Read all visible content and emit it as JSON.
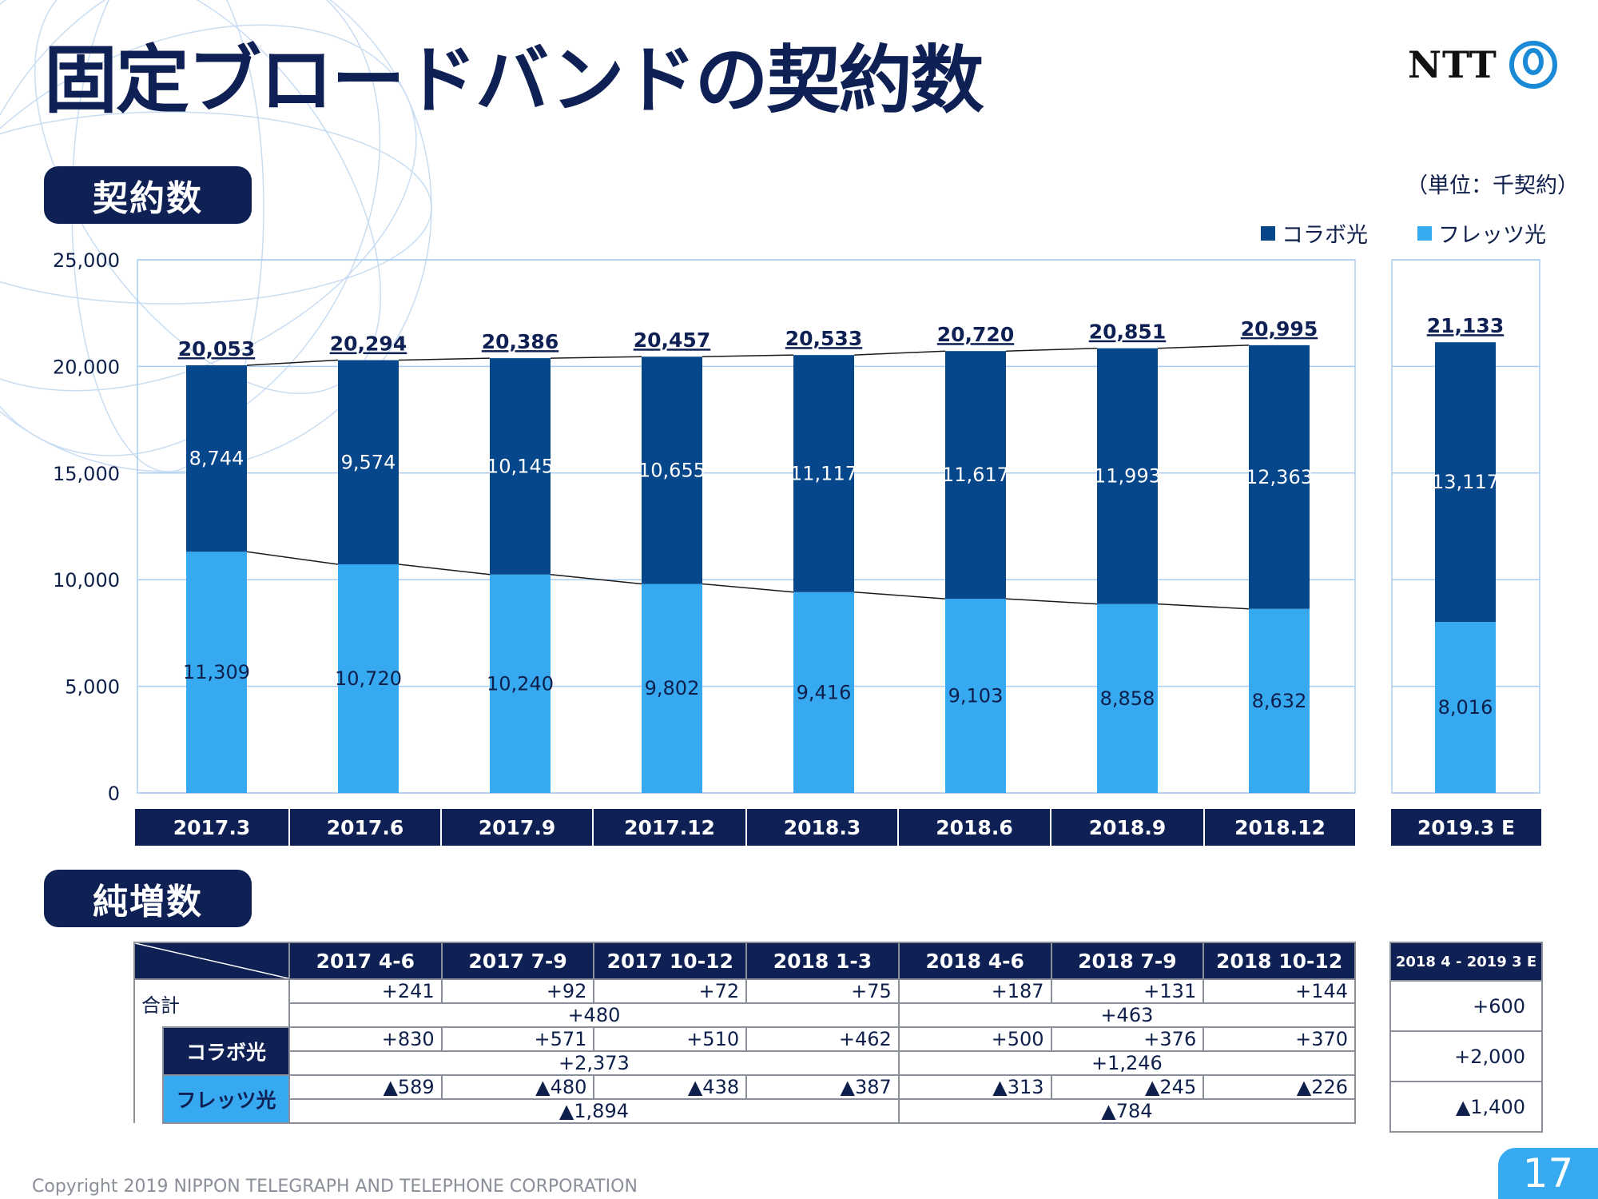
{
  "header": {
    "title": "固定ブロードバンドの契約数",
    "logo_text": "NTT"
  },
  "sections": {
    "contracts": "契約数",
    "net_adds": "純増数"
  },
  "unit_label": "（単位：千契約）",
  "legend": [
    {
      "label": "コラボ光",
      "color": "#06468a"
    },
    {
      "label": "フレッツ光",
      "color": "#37a9f0"
    }
  ],
  "chart_data": {
    "type": "bar",
    "stacked": true,
    "categories": [
      "2017.3",
      "2017.6",
      "2017.9",
      "2017.12",
      "2018.3",
      "2018.6",
      "2018.9",
      "2018.12",
      "2019.3 E"
    ],
    "series": [
      {
        "name": "フレッツ光",
        "values": [
          11309,
          10720,
          10240,
          9802,
          9416,
          9103,
          8858,
          8632,
          8016
        ],
        "color": "#37a9f0"
      },
      {
        "name": "コラボ光",
        "values": [
          8744,
          9574,
          10145,
          10655,
          11117,
          11617,
          11993,
          12363,
          13117
        ],
        "color": "#06468a"
      }
    ],
    "value_labels": {
      "フレッツ光": [
        "11,309",
        "10,720",
        "10,240",
        "9,802",
        "9,416",
        "9,103",
        "8,858",
        "8,632",
        "8,016"
      ],
      "コラボ光": [
        "8,744",
        "9,574",
        "10,145",
        "10,655",
        "11,117",
        "11,617",
        "11,993",
        "12,363",
        "13,117"
      ]
    },
    "totals": [
      20053,
      20294,
      20386,
      20457,
      20533,
      20720,
      20851,
      20995,
      21133
    ],
    "total_labels": [
      "20,053",
      "20,294",
      "20,386",
      "20,457",
      "20,533",
      "20,720",
      "20,851",
      "20,995",
      "21,133"
    ],
    "ylim": [
      0,
      25000
    ],
    "yticks": [
      0,
      5000,
      10000,
      15000,
      20000,
      25000
    ],
    "ytick_labels": [
      "0",
      "5,000",
      "10,000",
      "15,000",
      "20,000",
      "25,000"
    ],
    "grid": true,
    "legend_position": "top-right",
    "forecast_category": "2019.3 E"
  },
  "net_adds": {
    "headers": [
      "2017 4-6",
      "2017 7-9",
      "2017 10-12",
      "2018 1-3",
      "2018 4-6",
      "2018 7-9",
      "2018 10-12"
    ],
    "estimate_header": "2018 4 - 2019 3 E",
    "rows": [
      {
        "label": "合計",
        "quarters": [
          "+241",
          "+92",
          "+72",
          "+75",
          "+187",
          "+131",
          "+144"
        ],
        "fy": [
          "+480",
          "+463"
        ],
        "estimate": "+600"
      },
      {
        "label": "コラボ光",
        "quarters": [
          "+830",
          "+571",
          "+510",
          "+462",
          "+500",
          "+376",
          "+370"
        ],
        "fy": [
          "+2,373",
          "+1,246"
        ],
        "estimate": "+2,000"
      },
      {
        "label": "フレッツ光",
        "quarters": [
          "▲589",
          "▲480",
          "▲438",
          "▲387",
          "▲313",
          "▲245",
          "▲226"
        ],
        "fy": [
          "▲1,894",
          "▲784"
        ],
        "estimate": "▲1,400"
      }
    ]
  },
  "footer": {
    "copyright": "Copyright 2019 NIPPON TELEGRAPH AND TELEPHONE CORPORATION",
    "page_number": "17"
  }
}
